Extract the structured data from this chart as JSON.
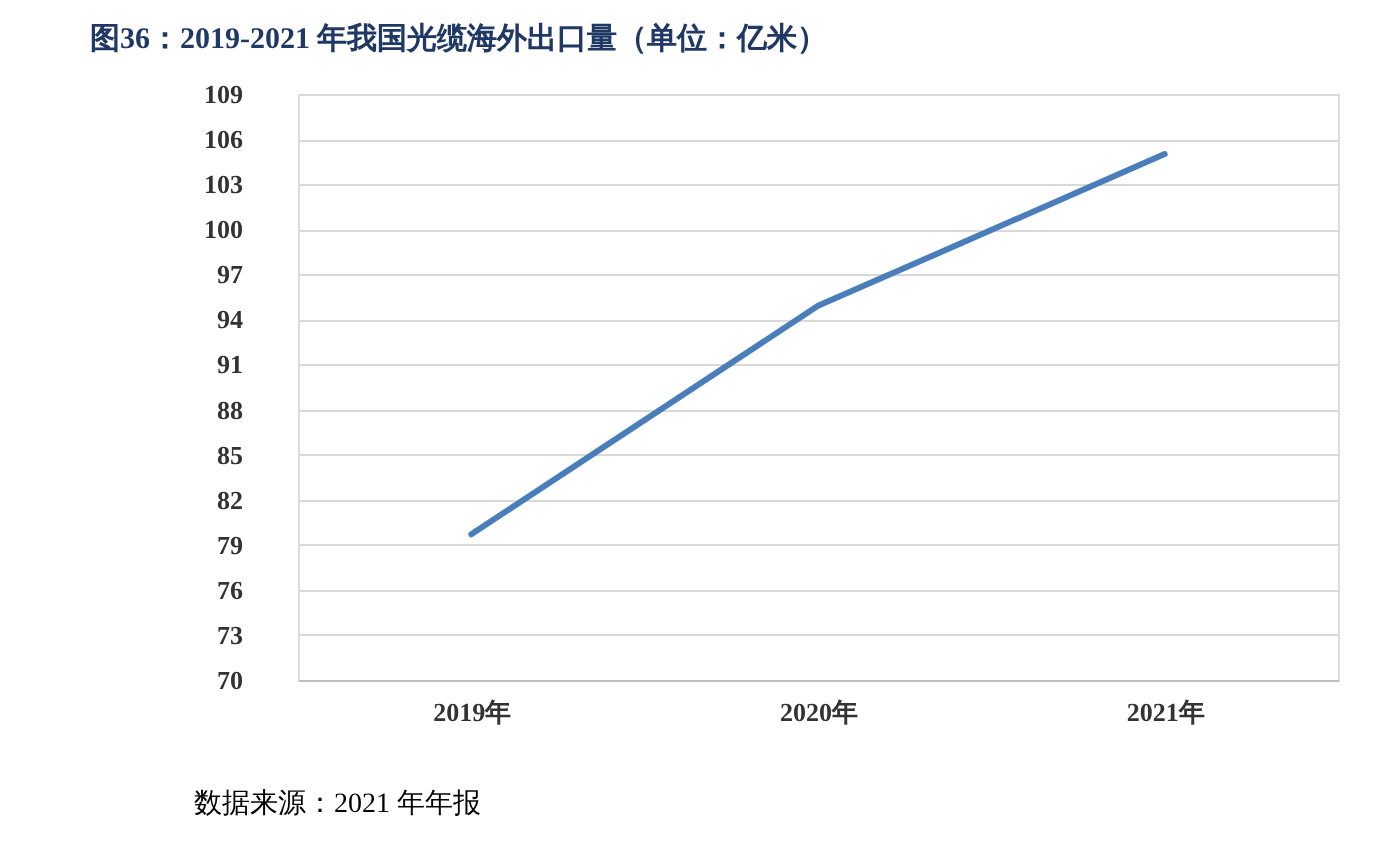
{
  "chart_data": {
    "type": "line",
    "title": "图36：2019-2021 年我国光缆海外出口量（单位：亿米）",
    "categories": [
      "2019年",
      "2020年",
      "2021年"
    ],
    "series": [
      {
        "color": "#4a7ebb",
        "values": [
          79.7,
          94.9,
          105.0
        ]
      }
    ],
    "ylim": [
      70,
      109
    ],
    "yticks": [
      70,
      73,
      76,
      79,
      82,
      85,
      88,
      91,
      94,
      97,
      100,
      103,
      106,
      109
    ],
    "grid": "y",
    "marker": "none",
    "line_style": "solid",
    "annotations": [
      "数据来源：2021 年年报"
    ]
  }
}
